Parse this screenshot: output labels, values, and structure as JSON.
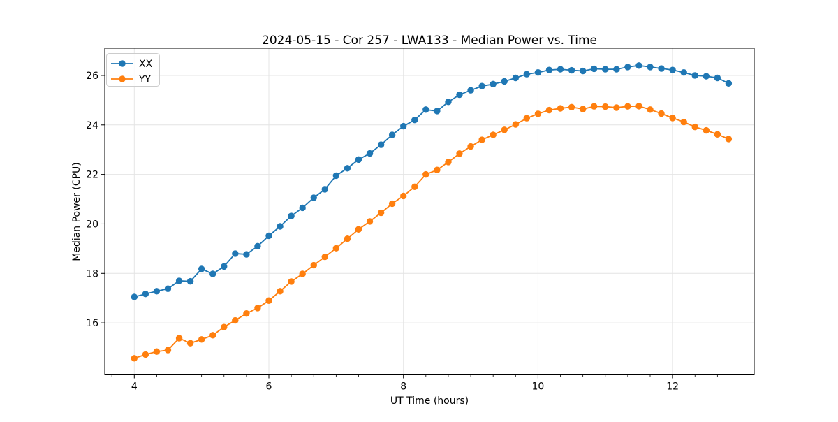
{
  "title": "2024-05-15 - Cor 257 - LWA133 - Median Power vs. Time",
  "x_axis": {
    "label": "UT Time (hours)",
    "tick_values": [
      4,
      6,
      8,
      10,
      12
    ],
    "tick_labels": [
      "4",
      "6",
      "8",
      "10",
      "12"
    ],
    "minor_tick_step": 0.33333,
    "lim": [
      3.561,
      13.213
    ]
  },
  "y_axis": {
    "label": "Median Power (CPU)",
    "tick_values": [
      16,
      18,
      20,
      22,
      24,
      26
    ],
    "tick_labels": [
      "16",
      "18",
      "20",
      "22",
      "24",
      "26"
    ],
    "lim": [
      13.9,
      27.1
    ]
  },
  "legend": {
    "position": "upper-left",
    "items": [
      {
        "label": "XX",
        "color": "#1f77b4"
      },
      {
        "label": "YY",
        "color": "#ff7f0e"
      }
    ]
  },
  "chart_data": {
    "type": "line",
    "title": "2024-05-15 - Cor 257 - LWA133 - Median Power vs. Time",
    "xlabel": "UT Time (hours)",
    "ylabel": "Median Power (CPU)",
    "xlim": [
      3.561,
      13.213
    ],
    "ylim": [
      13.9,
      27.1
    ],
    "grid": true,
    "legend_position": "upper left",
    "x": [
      4.0,
      4.167,
      4.333,
      4.5,
      4.667,
      4.833,
      5.0,
      5.167,
      5.333,
      5.5,
      5.667,
      5.833,
      6.0,
      6.167,
      6.333,
      6.5,
      6.667,
      6.833,
      7.0,
      7.167,
      7.333,
      7.5,
      7.667,
      7.833,
      8.0,
      8.167,
      8.333,
      8.5,
      8.667,
      8.833,
      9.0,
      9.167,
      9.333,
      9.5,
      9.667,
      9.833,
      10.0,
      10.167,
      10.333,
      10.5,
      10.667,
      10.833,
      11.0,
      11.167,
      11.333,
      11.5,
      11.667,
      11.833,
      12.0,
      12.167,
      12.333,
      12.5,
      12.667,
      12.833
    ],
    "series": [
      {
        "name": "XX",
        "color": "#1f77b4",
        "marker": "circle",
        "values": [
          17.05,
          17.17,
          17.28,
          17.38,
          17.7,
          17.68,
          18.18,
          17.98,
          18.28,
          18.8,
          18.77,
          19.1,
          19.52,
          19.9,
          20.32,
          20.65,
          21.06,
          21.4,
          21.95,
          22.25,
          22.6,
          22.85,
          23.2,
          23.6,
          23.95,
          24.2,
          24.62,
          24.56,
          24.93,
          25.22,
          25.4,
          25.57,
          25.65,
          25.76,
          25.9,
          26.05,
          26.12,
          26.22,
          26.25,
          26.21,
          26.18,
          26.27,
          26.25,
          26.25,
          26.34,
          26.4,
          26.34,
          26.28,
          26.22,
          26.12,
          26.0,
          25.97,
          25.9,
          25.68
        ]
      },
      {
        "name": "YY",
        "color": "#ff7f0e",
        "marker": "circle",
        "values": [
          14.57,
          14.72,
          14.84,
          14.9,
          15.38,
          15.18,
          15.33,
          15.5,
          15.83,
          16.1,
          16.38,
          16.6,
          16.9,
          17.28,
          17.67,
          17.98,
          18.33,
          18.67,
          19.02,
          19.4,
          19.78,
          20.1,
          20.45,
          20.82,
          21.13,
          21.5,
          22.0,
          22.18,
          22.5,
          22.84,
          23.13,
          23.4,
          23.6,
          23.8,
          24.02,
          24.27,
          24.45,
          24.6,
          24.67,
          24.72,
          24.64,
          24.75,
          24.74,
          24.7,
          24.75,
          24.76,
          24.62,
          24.46,
          24.28,
          24.12,
          23.92,
          23.78,
          23.62,
          23.43
        ]
      }
    ]
  }
}
